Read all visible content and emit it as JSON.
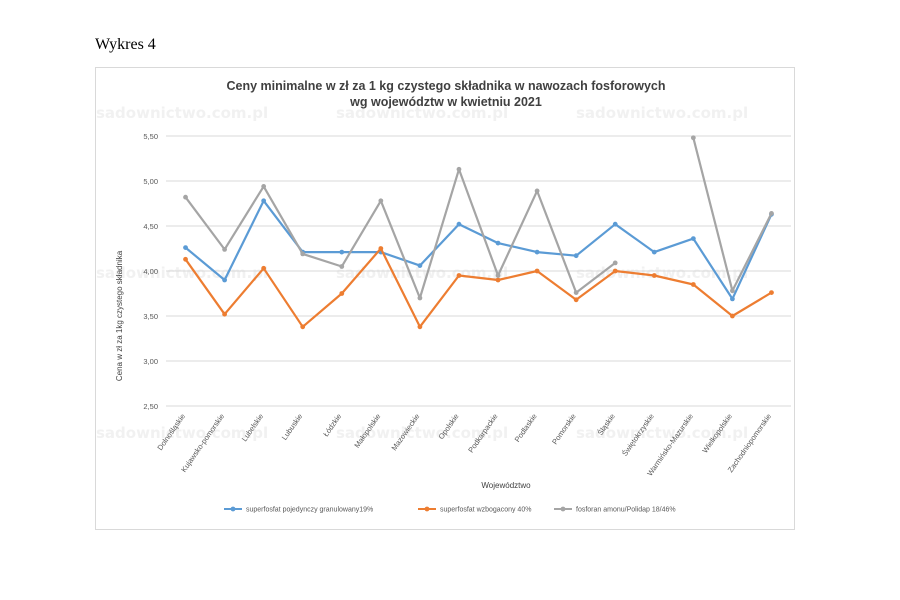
{
  "page": {
    "caption": "Wykres 4",
    "watermark": "sadownictwo.com.pl"
  },
  "chart_data": {
    "type": "line",
    "title": "Ceny minimalne w zł za 1 kg czystego składnika w nawozach fosforowych",
    "subtitle": "wg województw w kwietniu 2021",
    "xlabel": "Województwo",
    "ylabel": "Cena w zł za 1kg czystego składnika",
    "ylim": [
      2.5,
      5.5
    ],
    "yticks": [
      "2,50",
      "3,00",
      "3,50",
      "4,00",
      "4,50",
      "5,00",
      "5,50"
    ],
    "grid": true,
    "legend_position": "bottom",
    "categories": [
      "Dolnośląskie",
      "Kujawsko-pomorskie",
      "Lubelskie",
      "Lubuskie",
      "Łódzkie",
      "Małopolskie",
      "Mazowieckie",
      "Opolskie",
      "Podkarpackie",
      "Podlaskie",
      "Pomorskie",
      "Śląskie",
      "Świętokrzyskie",
      "Warmińsko-Mazurskie",
      "Wielkopolskie",
      "Zachodniopomorskie"
    ],
    "series": [
      {
        "name": "superfosfat pojedynczy granulowany19%",
        "color": "#5b9bd5",
        "values": [
          4.26,
          3.9,
          4.78,
          4.21,
          4.21,
          4.21,
          4.06,
          4.52,
          4.31,
          4.21,
          4.17,
          4.52,
          4.21,
          4.36,
          3.69,
          4.63
        ]
      },
      {
        "name": "superfosfat wzbogacony 40%",
        "color": "#ed7d31",
        "values": [
          4.13,
          3.52,
          4.03,
          3.38,
          3.75,
          4.25,
          3.38,
          3.95,
          3.9,
          4.0,
          3.68,
          4.0,
          3.95,
          3.85,
          3.5,
          3.76
        ]
      },
      {
        "name": "fosforan amonu/Polidap 18/46%",
        "color": "#a5a5a5",
        "values": [
          4.82,
          4.24,
          4.94,
          4.19,
          4.05,
          4.78,
          3.7,
          5.13,
          3.95,
          4.89,
          3.76,
          4.09,
          null,
          5.48,
          3.78,
          4.64
        ]
      }
    ]
  }
}
